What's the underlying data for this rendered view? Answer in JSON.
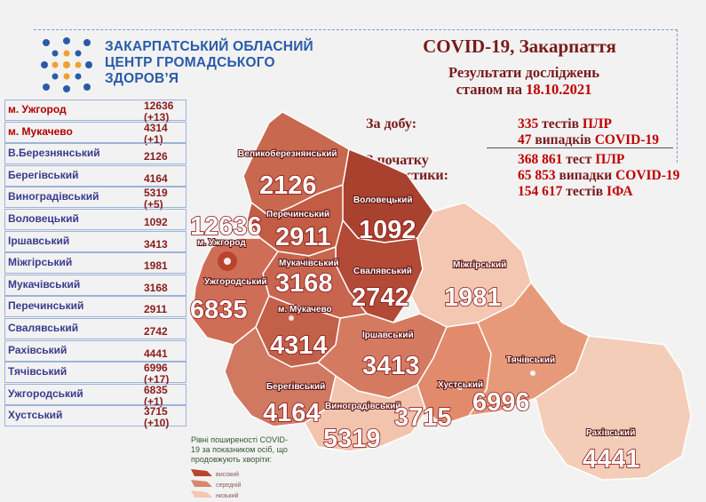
{
  "org": {
    "line1": "ЗАКАРПАТСЬКИЙ ОБЛАСНИЙ",
    "line2": "ЦЕНТР ГРОМАДСЬКОГО",
    "line3": "ЗДОРОВ’Я"
  },
  "header": {
    "title": "COVID-19, Закарпаття",
    "subtitle_line1": "Результати досліджень",
    "subtitle_prefix": "станом на",
    "date": "18.10.2021"
  },
  "stats": {
    "daily_label": "За добу:",
    "daily_pcr_num": "335",
    "daily_pcr_text": "тестів",
    "daily_pcr_abbr": "ПЛР",
    "daily_cases_num": "47",
    "daily_cases_text": "випадків",
    "daily_cases_abbr": "COVID-19",
    "total_label_1": "З початку",
    "total_label_2": "діагностики:",
    "total_pcr_num": "368 861",
    "total_pcr_text": "тест",
    "total_pcr_abbr": "ПЛР",
    "total_cases_num": "65 853",
    "total_cases_text": "випадки",
    "total_cases_abbr": "COVID-19",
    "total_ifa_num": "154 617",
    "total_ifa_text": "тестів",
    "total_ifa_abbr": "ІФА"
  },
  "table": [
    {
      "name": "м. Ужгород",
      "value": "12636",
      "delta": "(+13)",
      "city": true
    },
    {
      "name": "м. Мукачево",
      "value": "4314",
      "delta": "(+1)",
      "city": true
    },
    {
      "name": "В.Березнянський",
      "value": "2126",
      "delta": ""
    },
    {
      "name": "Берегівський",
      "value": "4164",
      "delta": ""
    },
    {
      "name": "Виноградівський",
      "value": "5319",
      "delta": "(+5)"
    },
    {
      "name": "Воловецький",
      "value": "1092",
      "delta": ""
    },
    {
      "name": "Іршавський",
      "value": "3413",
      "delta": ""
    },
    {
      "name": "Міжгірський",
      "value": "1981",
      "delta": ""
    },
    {
      "name": "Мукачівський",
      "value": "3168",
      "delta": ""
    },
    {
      "name": "Перечинський",
      "value": "2911",
      "delta": ""
    },
    {
      "name": "Свалявський",
      "value": "2742",
      "delta": ""
    },
    {
      "name": "Рахівський",
      "value": "4441",
      "delta": ""
    },
    {
      "name": "Тячівський",
      "value": "6996",
      "delta": "(+17)"
    },
    {
      "name": "Ужгородський",
      "value": "6835",
      "delta": "(+1)"
    },
    {
      "name": "Хустський",
      "value": "3715",
      "delta": "(+10)"
    }
  ],
  "map": {
    "regions": [
      {
        "name": "Великоберезнянський",
        "value": "2126",
        "color": "#c8684f"
      },
      {
        "name": "Перечинський",
        "value": "2911",
        "color": "#c25c45"
      },
      {
        "name": "Воловецький",
        "value": "1092",
        "color": "#a8412e"
      },
      {
        "name": "Свалявський",
        "value": "2742",
        "color": "#b24a36"
      },
      {
        "name": "Міжгірський",
        "value": "1981",
        "color": "#f3c7b2"
      },
      {
        "name": "Мукачівський",
        "value": "3168",
        "color": "#c7654f"
      },
      {
        "name": "Ужгородський",
        "value": "6835",
        "color": "#cf6e57"
      },
      {
        "name": "м. Ужгород",
        "value": "12636",
        "color": "#b8442f"
      },
      {
        "name": "м. Мукачево",
        "value": "4314",
        "color": "#c36049"
      },
      {
        "name": "Іршавський",
        "value": "3413",
        "color": "#d47a61"
      },
      {
        "name": "Берегівський",
        "value": "4164",
        "color": "#d17861"
      },
      {
        "name": "Виноградівський",
        "value": "5319",
        "color": "#f2c3ad"
      },
      {
        "name": "Хустський",
        "value": "3715",
        "color": "#e18b6c"
      },
      {
        "name": "Тячівський",
        "value": "6996",
        "color": "#e79a7a"
      },
      {
        "name": "Рахівський",
        "value": "4441",
        "color": "#f4cdb8"
      }
    ]
  },
  "legend": {
    "text": "Рівні поширеності COVID-19 за показником осіб, що продовжують хворіти:",
    "high": "високий",
    "medium": "середній",
    "low": "низький",
    "high_color": "#b8442f",
    "medium_color": "#d8876b",
    "low_color": "#f3c7b2"
  }
}
